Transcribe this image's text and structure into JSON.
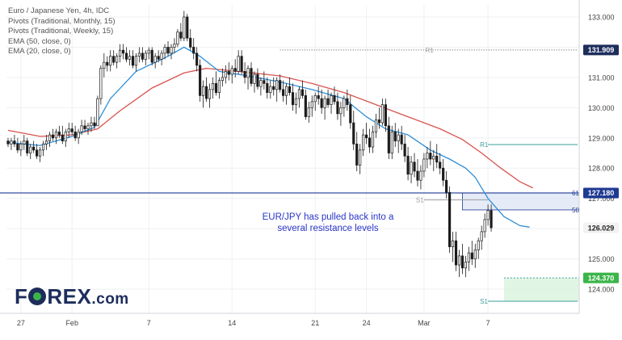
{
  "legend": {
    "line1": "Euro / Japanese Yen, 4h, IDC",
    "line2": "Pivots (Traditional, Monthly, 15)",
    "line3": "Pivots (Traditional, Weekly, 15)",
    "line4": "EMA (50, close, 0)",
    "line5": "EMA (20, close, 0)"
  },
  "annotation": {
    "line1": "EUR/JPY has pulled back into a",
    "line2": "several resistance levels"
  },
  "logo": {
    "main_a": "F",
    "main_b": "REX",
    "suffix": ".com"
  },
  "colors": {
    "up": "#26a69a",
    "down": "#26a69a",
    "candle": "#1b1b1b",
    "ema20": "#2f8fd8",
    "ema50": "#d9534f",
    "pivot_r1": "#9e9e9e",
    "pivot_teal": "#3a9e9a",
    "hline_blue": "#1f3a93",
    "current_price_bg": "#f2f2f2",
    "annotation": "#2a35c9",
    "fib_zone": "#cfdaf0"
  },
  "chart_data": {
    "type": "candlestick",
    "symbol": "Euro / Japanese Yen",
    "timeframe": "4h",
    "y_axis": {
      "ylim": [
        123.2,
        133.4
      ],
      "ticks": [
        124.0,
        125.0,
        126.0,
        127.0,
        128.0,
        129.0,
        130.0,
        131.0,
        132.0,
        133.0
      ],
      "tick_labels": [
        "124.000",
        "125.000",
        "126.000",
        "127.000",
        "128.000",
        "129.000",
        "130.000",
        "131.000",
        "132.000",
        "133.000"
      ]
    },
    "x_axis": {
      "labels": [
        "27",
        "Feb",
        "7",
        "14",
        "21",
        "24",
        "Mar",
        "7"
      ],
      "label_bar_index": [
        4,
        20,
        44,
        70,
        96,
        112,
        130,
        150
      ]
    },
    "price_tags": [
      {
        "value": 131.909,
        "label": "131.909",
        "style": "dark"
      },
      {
        "value": 127.18,
        "label": "127.180",
        "style": "blue"
      },
      {
        "value": 126.029,
        "label": "126.029",
        "style": "light"
      },
      {
        "value": 124.37,
        "label": "124.370",
        "style": "green"
      }
    ],
    "pivots": [
      {
        "label": "R1",
        "value": 131.909,
        "from_bar": 85,
        "to_bar": 178,
        "style": "dotted"
      },
      {
        "label": "R1",
        "value": 128.78,
        "from_bar": 150,
        "to_bar": 178,
        "style": "teal"
      },
      {
        "label": "S1",
        "value": 126.95,
        "from_bar": 130,
        "to_bar": 150,
        "style": "gray"
      },
      {
        "label": "S1",
        "value": 123.6,
        "from_bar": 150,
        "to_bar": 178,
        "style": "teal"
      }
    ],
    "horizontal_line": {
      "value": 127.18
    },
    "fib_levels": [
      {
        "label": "61",
        "value": 127.18
      },
      {
        "label": "50",
        "value": 126.62
      }
    ],
    "fib_zone": {
      "from_bar": 142,
      "to_bar": 178,
      "top": 127.18,
      "bottom": 126.62
    },
    "support_zone": {
      "from_bar": 155,
      "to_bar": 178,
      "top": 124.37,
      "bottom": 123.6
    },
    "candles": [
      [
        128.9,
        129.0,
        128.7,
        128.8
      ],
      [
        128.8,
        129.0,
        128.6,
        128.9
      ],
      [
        128.9,
        129.1,
        128.7,
        128.8
      ],
      [
        128.8,
        129.0,
        128.5,
        128.6
      ],
      [
        128.6,
        128.9,
        128.4,
        128.8
      ],
      [
        128.8,
        129.1,
        128.6,
        128.9
      ],
      [
        128.9,
        129.0,
        128.4,
        128.5
      ],
      [
        128.5,
        128.8,
        128.3,
        128.7
      ],
      [
        128.7,
        128.9,
        128.5,
        128.6
      ],
      [
        128.6,
        128.8,
        128.3,
        128.4
      ],
      [
        128.4,
        128.7,
        128.2,
        128.6
      ],
      [
        128.6,
        128.9,
        128.4,
        128.8
      ],
      [
        128.8,
        129.1,
        128.6,
        128.9
      ],
      [
        128.9,
        129.2,
        128.7,
        129.1
      ],
      [
        129.1,
        129.3,
        128.9,
        129.0
      ],
      [
        129.0,
        129.3,
        128.8,
        129.2
      ],
      [
        129.2,
        129.4,
        129.0,
        129.1
      ],
      [
        129.1,
        129.4,
        128.8,
        128.9
      ],
      [
        128.9,
        129.3,
        128.7,
        129.2
      ],
      [
        129.2,
        129.5,
        129.0,
        129.3
      ],
      [
        129.3,
        129.5,
        129.1,
        129.2
      ],
      [
        129.2,
        129.4,
        128.9,
        129.0
      ],
      [
        129.0,
        129.3,
        128.8,
        129.2
      ],
      [
        129.2,
        129.6,
        129.1,
        129.4
      ],
      [
        129.4,
        129.6,
        129.2,
        129.3
      ],
      [
        129.3,
        129.5,
        129.1,
        129.4
      ],
      [
        129.4,
        129.7,
        129.2,
        129.5
      ],
      [
        129.5,
        129.7,
        129.3,
        129.4
      ],
      [
        129.4,
        130.4,
        129.4,
        130.3
      ],
      [
        130.3,
        131.4,
        130.1,
        131.3
      ],
      [
        131.3,
        131.8,
        131.0,
        131.5
      ],
      [
        131.5,
        131.7,
        131.2,
        131.4
      ],
      [
        131.4,
        131.9,
        131.2,
        131.7
      ],
      [
        131.7,
        131.9,
        131.4,
        131.5
      ],
      [
        131.5,
        131.8,
        131.3,
        131.7
      ],
      [
        131.7,
        132.1,
        131.5,
        131.9
      ],
      [
        131.9,
        132.1,
        131.6,
        131.8
      ],
      [
        131.8,
        132.0,
        131.5,
        131.6
      ],
      [
        131.6,
        131.9,
        131.4,
        131.7
      ],
      [
        131.7,
        131.9,
        131.3,
        131.4
      ],
      [
        131.4,
        131.8,
        131.2,
        131.7
      ],
      [
        131.7,
        132.0,
        131.5,
        131.8
      ],
      [
        131.8,
        132.0,
        131.5,
        131.6
      ],
      [
        131.6,
        131.9,
        131.4,
        131.8
      ],
      [
        131.8,
        132.0,
        131.6,
        131.9
      ],
      [
        131.9,
        132.0,
        131.4,
        131.5
      ],
      [
        131.5,
        131.8,
        131.3,
        131.7
      ],
      [
        131.7,
        131.9,
        131.5,
        131.6
      ],
      [
        131.6,
        131.9,
        131.4,
        131.8
      ],
      [
        131.8,
        132.1,
        131.6,
        132.0
      ],
      [
        132.0,
        132.2,
        131.7,
        131.8
      ],
      [
        131.8,
        132.1,
        131.6,
        132.0
      ],
      [
        132.0,
        132.3,
        131.8,
        132.1
      ],
      [
        132.1,
        132.6,
        132.0,
        132.5
      ],
      [
        132.5,
        132.8,
        132.2,
        132.3
      ],
      [
        132.3,
        133.2,
        132.2,
        133.0
      ],
      [
        133.0,
        133.1,
        132.2,
        132.3
      ],
      [
        132.3,
        132.6,
        131.9,
        132.0
      ],
      [
        132.0,
        132.3,
        131.6,
        131.8
      ],
      [
        131.8,
        132.0,
        131.2,
        131.4
      ],
      [
        131.4,
        131.6,
        130.2,
        130.4
      ],
      [
        130.4,
        130.9,
        130.0,
        130.7
      ],
      [
        130.7,
        131.0,
        130.2,
        130.3
      ],
      [
        130.3,
        130.8,
        130.0,
        130.6
      ],
      [
        130.6,
        131.0,
        130.3,
        130.8
      ],
      [
        130.8,
        131.2,
        130.4,
        130.5
      ],
      [
        130.5,
        131.0,
        130.3,
        130.9
      ],
      [
        130.9,
        131.3,
        130.7,
        131.0
      ],
      [
        131.0,
        131.4,
        130.8,
        131.2
      ],
      [
        131.2,
        131.5,
        130.9,
        131.1
      ],
      [
        131.1,
        131.4,
        130.8,
        131.3
      ],
      [
        131.3,
        131.6,
        131.0,
        131.2
      ],
      [
        131.2,
        131.9,
        131.1,
        131.7
      ],
      [
        131.7,
        131.9,
        131.1,
        131.2
      ],
      [
        131.2,
        131.5,
        130.8,
        131.0
      ],
      [
        131.0,
        131.4,
        130.6,
        131.3
      ],
      [
        131.3,
        131.5,
        130.7,
        130.8
      ],
      [
        130.8,
        131.2,
        130.5,
        131.1
      ],
      [
        131.1,
        131.3,
        130.6,
        130.7
      ],
      [
        130.7,
        131.0,
        130.4,
        130.9
      ],
      [
        130.9,
        131.2,
        130.6,
        130.8
      ],
      [
        130.8,
        131.0,
        130.3,
        130.5
      ],
      [
        130.5,
        130.9,
        130.3,
        130.7
      ],
      [
        130.7,
        131.0,
        130.4,
        130.6
      ],
      [
        130.6,
        131.0,
        130.2,
        130.9
      ],
      [
        130.9,
        131.1,
        130.5,
        130.6
      ],
      [
        130.6,
        130.9,
        130.2,
        130.4
      ],
      [
        130.4,
        130.8,
        130.1,
        130.7
      ],
      [
        130.7,
        131.0,
        130.4,
        130.5
      ],
      [
        130.5,
        130.8,
        129.9,
        130.1
      ],
      [
        130.1,
        130.5,
        129.8,
        130.3
      ],
      [
        130.3,
        130.7,
        130.0,
        130.6
      ],
      [
        130.6,
        130.9,
        130.3,
        130.4
      ],
      [
        130.4,
        130.6,
        129.6,
        129.7
      ],
      [
        129.7,
        130.2,
        129.5,
        130.0
      ],
      [
        130.0,
        130.4,
        129.7,
        130.2
      ],
      [
        130.2,
        130.5,
        129.9,
        130.4
      ],
      [
        130.4,
        130.7,
        130.1,
        130.3
      ],
      [
        130.3,
        130.6,
        129.8,
        130.0
      ],
      [
        130.0,
        130.4,
        129.6,
        130.3
      ],
      [
        130.3,
        130.6,
        130.0,
        130.1
      ],
      [
        130.1,
        130.5,
        129.8,
        130.4
      ],
      [
        130.4,
        130.7,
        130.1,
        130.2
      ],
      [
        130.2,
        130.5,
        129.6,
        129.8
      ],
      [
        129.8,
        130.2,
        129.4,
        130.0
      ],
      [
        130.0,
        130.4,
        129.7,
        130.3
      ],
      [
        130.3,
        130.6,
        129.9,
        130.1
      ],
      [
        130.1,
        130.4,
        129.3,
        129.5
      ],
      [
        129.5,
        129.9,
        128.6,
        128.8
      ],
      [
        128.8,
        129.2,
        127.9,
        128.1
      ],
      [
        128.1,
        128.8,
        127.8,
        128.6
      ],
      [
        128.6,
        129.3,
        128.4,
        129.1
      ],
      [
        129.1,
        129.5,
        128.8,
        129.0
      ],
      [
        129.0,
        129.3,
        128.5,
        128.7
      ],
      [
        128.7,
        129.4,
        128.5,
        129.2
      ],
      [
        129.2,
        129.8,
        129.0,
        129.6
      ],
      [
        129.6,
        130.0,
        129.3,
        129.5
      ],
      [
        129.5,
        130.3,
        129.4,
        130.1
      ],
      [
        130.1,
        130.3,
        129.2,
        129.4
      ],
      [
        129.4,
        129.7,
        128.3,
        128.5
      ],
      [
        128.5,
        129.4,
        128.3,
        129.2
      ],
      [
        129.2,
        129.5,
        128.7,
        128.9
      ],
      [
        128.9,
        129.3,
        128.5,
        129.1
      ],
      [
        129.1,
        129.4,
        128.6,
        128.8
      ],
      [
        128.8,
        129.1,
        128.2,
        128.4
      ],
      [
        128.4,
        128.7,
        127.6,
        127.8
      ],
      [
        127.8,
        128.4,
        127.5,
        128.2
      ],
      [
        128.2,
        128.5,
        127.7,
        127.9
      ],
      [
        127.9,
        128.3,
        127.4,
        127.6
      ],
      [
        127.6,
        128.1,
        127.3,
        127.9
      ],
      [
        127.9,
        128.5,
        127.7,
        128.3
      ],
      [
        128.3,
        128.7,
        128.0,
        128.5
      ],
      [
        128.5,
        128.9,
        128.1,
        128.3
      ],
      [
        128.3,
        128.6,
        127.9,
        128.4
      ],
      [
        128.4,
        128.8,
        128.0,
        128.2
      ],
      [
        128.2,
        128.5,
        127.8,
        128.0
      ],
      [
        128.0,
        128.3,
        127.4,
        127.6
      ],
      [
        127.6,
        127.9,
        127.0,
        127.2
      ],
      [
        127.2,
        127.4,
        125.2,
        125.4
      ],
      [
        125.4,
        125.9,
        124.9,
        125.6
      ],
      [
        125.6,
        125.9,
        124.6,
        124.8
      ],
      [
        124.8,
        125.3,
        124.4,
        125.1
      ],
      [
        125.1,
        125.5,
        124.5,
        124.7
      ],
      [
        124.7,
        125.1,
        124.4,
        124.9
      ],
      [
        124.9,
        125.4,
        124.6,
        125.2
      ],
      [
        125.2,
        125.6,
        124.8,
        125.0
      ],
      [
        125.0,
        125.5,
        124.7,
        125.3
      ],
      [
        125.3,
        125.7,
        125.0,
        125.6
      ],
      [
        125.6,
        126.1,
        125.3,
        125.9
      ],
      [
        125.9,
        126.5,
        125.7,
        126.3
      ],
      [
        126.3,
        126.8,
        126.1,
        126.6
      ],
      [
        126.6,
        126.8,
        125.9,
        126.03
      ]
    ],
    "ema20": [
      [
        0,
        128.85
      ],
      [
        10,
        128.75
      ],
      [
        20,
        129.05
      ],
      [
        27,
        129.35
      ],
      [
        32,
        130.3
      ],
      [
        40,
        131.2
      ],
      [
        50,
        131.7
      ],
      [
        55,
        132.0
      ],
      [
        60,
        131.7
      ],
      [
        66,
        131.2
      ],
      [
        75,
        131.05
      ],
      [
        85,
        130.85
      ],
      [
        95,
        130.6
      ],
      [
        105,
        130.3
      ],
      [
        112,
        129.7
      ],
      [
        118,
        129.3
      ],
      [
        125,
        129.1
      ],
      [
        132,
        128.6
      ],
      [
        138,
        128.3
      ],
      [
        143,
        128.0
      ],
      [
        146,
        127.7
      ],
      [
        150,
        127.0
      ],
      [
        155,
        126.4
      ],
      [
        160,
        126.1
      ],
      [
        163,
        126.05
      ]
    ],
    "ema50": [
      [
        0,
        129.25
      ],
      [
        10,
        129.05
      ],
      [
        20,
        129.1
      ],
      [
        28,
        129.3
      ],
      [
        35,
        129.9
      ],
      [
        45,
        130.65
      ],
      [
        55,
        131.15
      ],
      [
        62,
        131.3
      ],
      [
        72,
        131.2
      ],
      [
        85,
        131.05
      ],
      [
        95,
        130.8
      ],
      [
        105,
        130.5
      ],
      [
        115,
        130.1
      ],
      [
        125,
        129.7
      ],
      [
        135,
        129.3
      ],
      [
        142,
        128.95
      ],
      [
        148,
        128.5
      ],
      [
        154,
        128.0
      ],
      [
        160,
        127.55
      ],
      [
        164,
        127.35
      ]
    ]
  }
}
